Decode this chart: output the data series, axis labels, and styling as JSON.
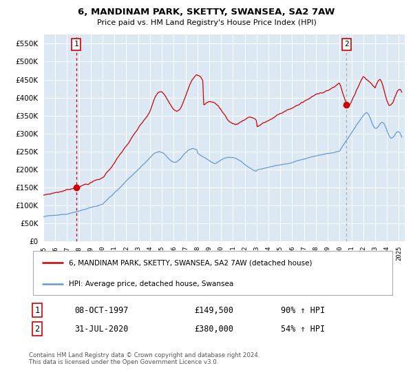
{
  "title": "6, MANDINAM PARK, SKETTY, SWANSEA, SA2 7AW",
  "subtitle": "Price paid vs. HM Land Registry's House Price Index (HPI)",
  "legend_line1": "6, MANDINAM PARK, SKETTY, SWANSEA, SA2 7AW (detached house)",
  "legend_line2": "HPI: Average price, detached house, Swansea",
  "sale1_date": "08-OCT-1997",
  "sale1_price": "£149,500",
  "sale1_hpi": "90% ↑ HPI",
  "sale2_date": "31-JUL-2020",
  "sale2_price": "£380,000",
  "sale2_hpi": "54% ↑ HPI",
  "footer": "Contains HM Land Registry data © Crown copyright and database right 2024.\nThis data is licensed under the Open Government Licence v3.0.",
  "hpi_color": "#6699cc",
  "price_color": "#cc0000",
  "plot_bg": "#dce9f5",
  "grid_color": "#ffffff",
  "sale1_year": 1997.77,
  "sale2_year": 2020.58,
  "sale1_price_val": 149500,
  "sale2_price_val": 380000,
  "ylim": [
    0,
    575000
  ],
  "xlim_start": 1995.0,
  "xlim_end": 2025.5
}
